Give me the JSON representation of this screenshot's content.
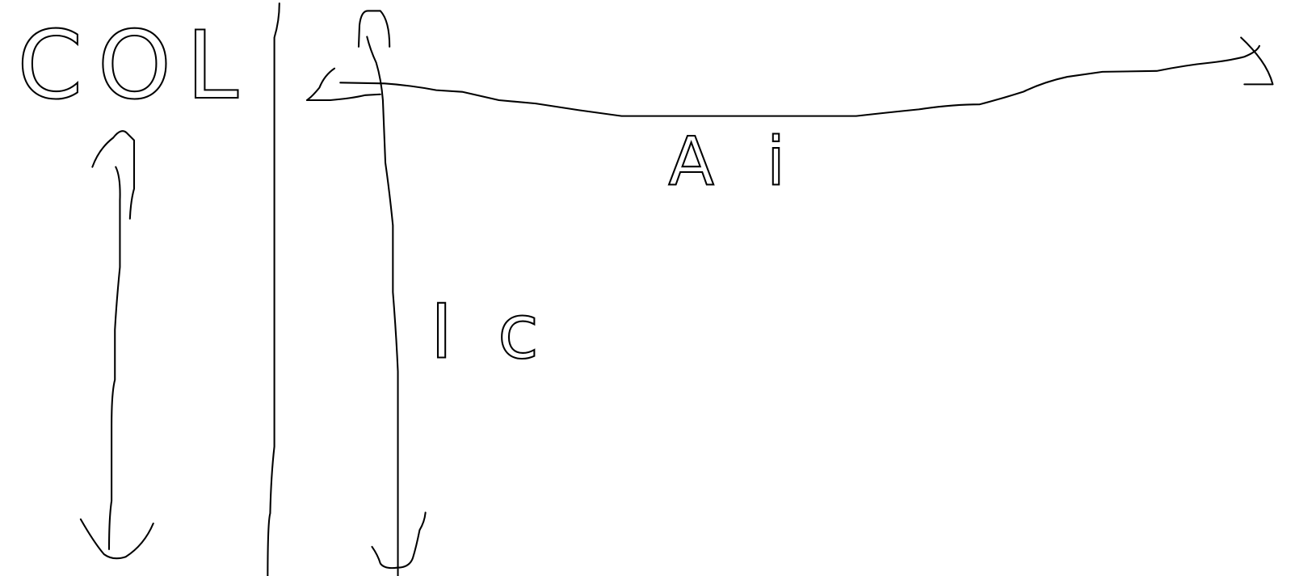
{
  "labels": {
    "column": "COL",
    "horizontal_arrow": "Ai",
    "vertical_arrow": "Ic"
  }
}
